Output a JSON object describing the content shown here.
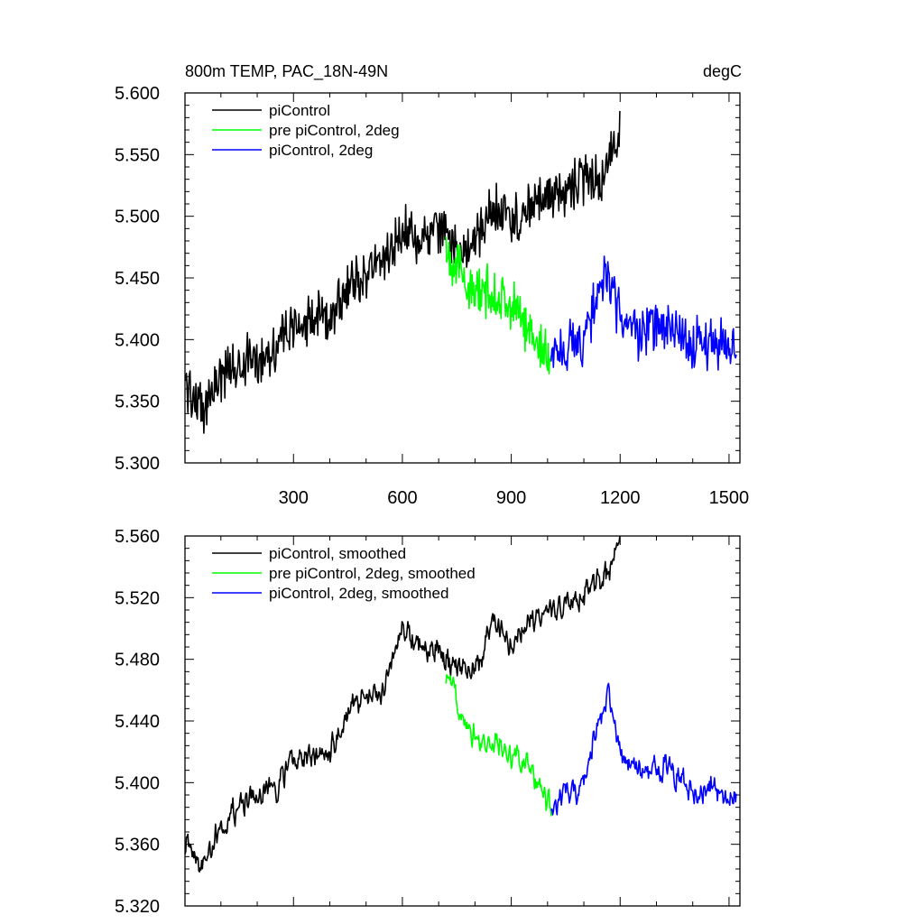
{
  "figure": {
    "title_left": "800m TEMP, PAC_18N-49N",
    "title_right": "degC"
  },
  "colors": {
    "black": "#000000",
    "green": "#00ff00",
    "blue": "#0000ff"
  },
  "chart_data": [
    {
      "type": "line",
      "title": "800m TEMP, PAC_18N-49N",
      "units": "degC",
      "xlim": [
        1,
        1530
      ],
      "ylim": [
        5.3,
        5.6
      ],
      "x_ticks": [
        300,
        600,
        900,
        1200,
        1500
      ],
      "x_tick_labels": [
        "300",
        "600",
        "900",
        "1200",
        "1500"
      ],
      "y_ticks": [
        5.3,
        5.35,
        5.4,
        5.45,
        5.5,
        5.55,
        5.6
      ],
      "y_tick_labels": [
        "5.300",
        "5.350",
        "5.400",
        "5.450",
        "5.500",
        "5.550",
        "5.600"
      ],
      "grid": false,
      "legend_position": "top-left",
      "series": [
        {
          "name": "piControl",
          "color": "#000000",
          "x": [
            1,
            25,
            50,
            75,
            100,
            150,
            200,
            250,
            300,
            350,
            400,
            450,
            500,
            550,
            600,
            650,
            700,
            750,
            800,
            850,
            900,
            950,
            1000,
            1050,
            1100,
            1150,
            1200
          ],
          "values": [
            5.365,
            5.355,
            5.34,
            5.36,
            5.37,
            5.38,
            5.385,
            5.395,
            5.41,
            5.415,
            5.42,
            5.44,
            5.455,
            5.465,
            5.49,
            5.48,
            5.49,
            5.475,
            5.475,
            5.51,
            5.495,
            5.505,
            5.515,
            5.52,
            5.53,
            5.53,
            5.565
          ]
        },
        {
          "name": "pre piControl, 2deg",
          "color": "#00ff00",
          "x": [
            720,
            750,
            800,
            850,
            900,
            950,
            980,
            1010
          ],
          "values": [
            5.475,
            5.46,
            5.435,
            5.44,
            5.425,
            5.41,
            5.395,
            5.38
          ]
        },
        {
          "name": "piControl, 2deg",
          "color": "#0000ff",
          "x": [
            1010,
            1050,
            1100,
            1130,
            1150,
            1170,
            1200,
            1250,
            1300,
            1350,
            1400,
            1450,
            1500,
            1520
          ],
          "values": [
            5.385,
            5.395,
            5.4,
            5.43,
            5.445,
            5.45,
            5.415,
            5.405,
            5.41,
            5.405,
            5.395,
            5.4,
            5.395,
            5.39
          ]
        }
      ]
    },
    {
      "type": "line",
      "xlim": [
        1,
        1530
      ],
      "ylim": [
        5.32,
        5.56
      ],
      "x_ticks": [
        300,
        600,
        900,
        1200,
        1500
      ],
      "y_ticks": [
        5.32,
        5.36,
        5.4,
        5.44,
        5.48,
        5.52,
        5.56
      ],
      "y_tick_labels": [
        "5.320",
        "5.360",
        "5.400",
        "5.440",
        "5.480",
        "5.520",
        "5.560"
      ],
      "grid": false,
      "legend_position": "top-left",
      "series": [
        {
          "name": "piControl, smoothed",
          "color": "#000000",
          "x": [
            1,
            25,
            50,
            75,
            100,
            150,
            200,
            250,
            300,
            350,
            400,
            450,
            500,
            550,
            600,
            650,
            700,
            750,
            800,
            850,
            900,
            950,
            1000,
            1050,
            1100,
            1150,
            1200
          ],
          "values": [
            5.362,
            5.358,
            5.345,
            5.36,
            5.372,
            5.385,
            5.39,
            5.398,
            5.415,
            5.415,
            5.418,
            5.445,
            5.455,
            5.46,
            5.5,
            5.49,
            5.485,
            5.475,
            5.47,
            5.505,
            5.49,
            5.5,
            5.51,
            5.515,
            5.525,
            5.53,
            5.555
          ]
        },
        {
          "name": "pre piControl, 2deg, smoothed",
          "color": "#00ff00",
          "x": [
            720,
            750,
            800,
            850,
            900,
            950,
            980,
            1010
          ],
          "values": [
            5.47,
            5.455,
            5.43,
            5.425,
            5.42,
            5.41,
            5.398,
            5.38
          ]
        },
        {
          "name": "piControl, 2deg, smoothed",
          "color": "#0000ff",
          "x": [
            1010,
            1050,
            1100,
            1130,
            1150,
            1170,
            1200,
            1250,
            1300,
            1350,
            1400,
            1450,
            1500,
            1520
          ],
          "values": [
            5.385,
            5.393,
            5.398,
            5.43,
            5.445,
            5.455,
            5.418,
            5.408,
            5.41,
            5.405,
            5.392,
            5.398,
            5.392,
            5.39
          ]
        }
      ]
    }
  ]
}
